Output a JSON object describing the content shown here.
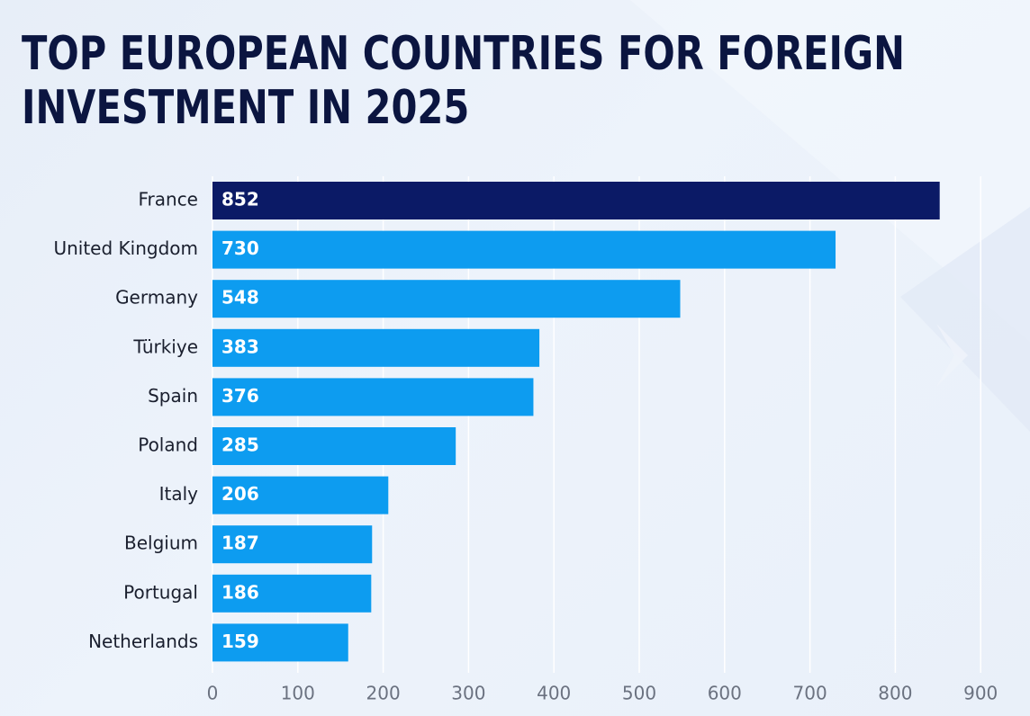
{
  "title_lines": [
    "TOP EUROPEAN COUNTRIES FOR FOREIGN",
    "INVESTMENT IN 2025"
  ],
  "colors": {
    "highlight": "#0b1a66",
    "bar": "#0d9cf0",
    "title": "#0b1540",
    "grid": "#ffffff",
    "tick": "#6b7280"
  },
  "chart_data": {
    "type": "bar",
    "orientation": "horizontal",
    "title": "TOP EUROPEAN COUNTRIES FOR FOREIGN INVESTMENT IN 2025",
    "categories": [
      "France",
      "United Kingdom",
      "Germany",
      "Türkiye",
      "Spain",
      "Poland",
      "Italy",
      "Belgium",
      "Portugal",
      "Netherlands"
    ],
    "values": [
      852,
      730,
      548,
      383,
      376,
      285,
      206,
      187,
      186,
      159
    ],
    "data_labels": [
      "852",
      "730",
      "548",
      "383",
      "376",
      "285",
      "206",
      "187",
      "186",
      "159"
    ],
    "xticks": [
      0,
      100,
      200,
      300,
      400,
      500,
      600,
      700,
      800,
      900
    ],
    "xtick_labels": [
      "0",
      "100",
      "200",
      "300",
      "400",
      "500",
      "600",
      "700",
      "800",
      "900"
    ],
    "xlim": [
      0,
      900
    ],
    "highlighted_category": "France",
    "grid": true,
    "legend": "none"
  }
}
